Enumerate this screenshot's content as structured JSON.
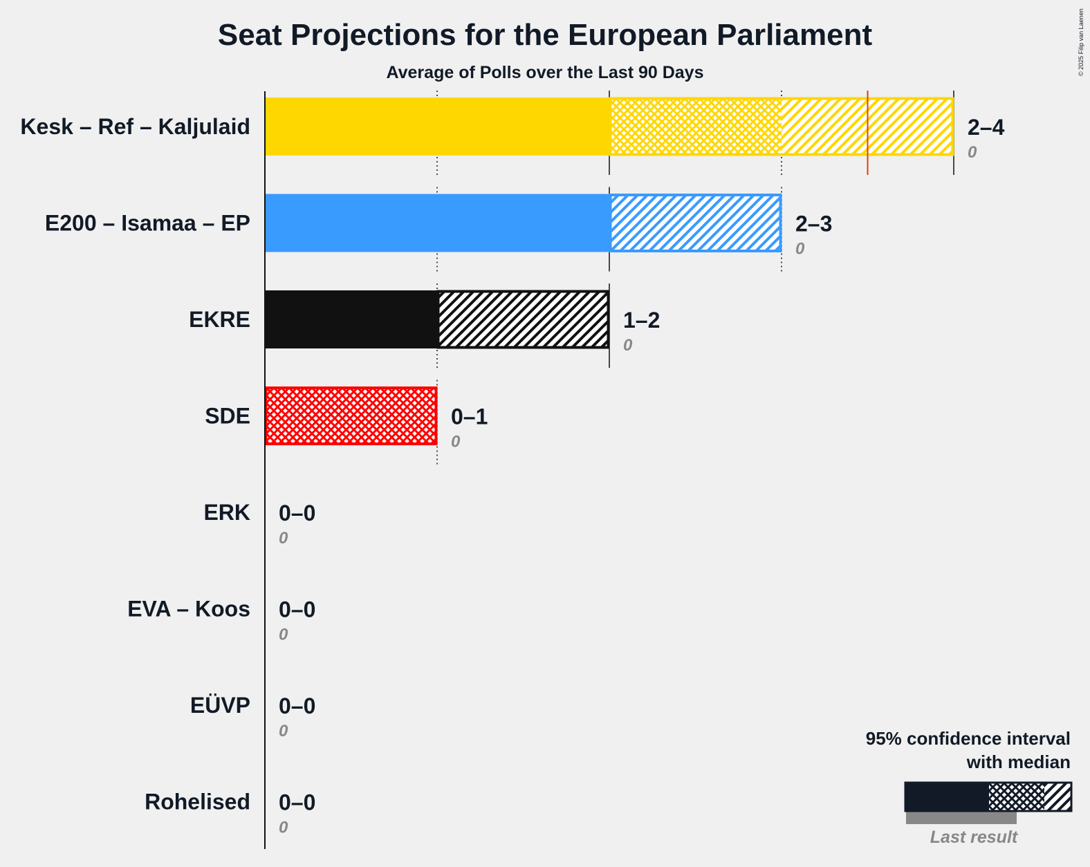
{
  "chart_data": {
    "type": "bar",
    "title": "Seat Projections for the European Parliament",
    "subtitle": "Average of Polls over the Last 90 Days",
    "copyright": "© 2025 Filip van Laenen",
    "xlim": [
      0,
      4
    ],
    "gridlines": [
      1,
      2,
      3,
      4
    ],
    "series": [
      {
        "name": "Kesk – Ref – Kaljulaid",
        "color": "#FFD700",
        "range_label": "2–4",
        "ci_low": 2,
        "median": 3,
        "ci_high": 4,
        "last_result": 0,
        "last_label": "0",
        "marker": 3.5,
        "marker_color": "#E04000"
      },
      {
        "name": "E200 – Isamaa – EP",
        "color": "#3A9BFF",
        "range_label": "2–3",
        "ci_low": 2,
        "median": 2,
        "ci_high": 3,
        "last_result": 0,
        "last_label": "0"
      },
      {
        "name": "EKRE",
        "color": "#111111",
        "range_label": "1–2",
        "ci_low": 1,
        "median": 1,
        "ci_high": 2,
        "last_result": 0,
        "last_label": "0"
      },
      {
        "name": "SDE",
        "color": "#FF0000",
        "range_label": "0–1",
        "ci_low": 0,
        "median": 1,
        "ci_high": 1,
        "last_result": 0,
        "last_label": "0"
      },
      {
        "name": "ERK",
        "color": "#888888",
        "range_label": "0–0",
        "ci_low": 0,
        "median": 0,
        "ci_high": 0,
        "last_result": 0,
        "last_label": "0"
      },
      {
        "name": "EVA – Koos",
        "color": "#888888",
        "range_label": "0–0",
        "ci_low": 0,
        "median": 0,
        "ci_high": 0,
        "last_result": 0,
        "last_label": "0"
      },
      {
        "name": "EÜVP",
        "color": "#888888",
        "range_label": "0–0",
        "ci_low": 0,
        "median": 0,
        "ci_high": 0,
        "last_result": 0,
        "last_label": "0"
      },
      {
        "name": "Rohelised",
        "color": "#888888",
        "range_label": "0–0",
        "ci_low": 0,
        "median": 0,
        "ci_high": 0,
        "last_result": 0,
        "last_label": "0"
      }
    ],
    "legend": {
      "line1": "95% confidence interval",
      "line2": "with median",
      "last_result_label": "Last result",
      "color": "#111a26"
    }
  }
}
